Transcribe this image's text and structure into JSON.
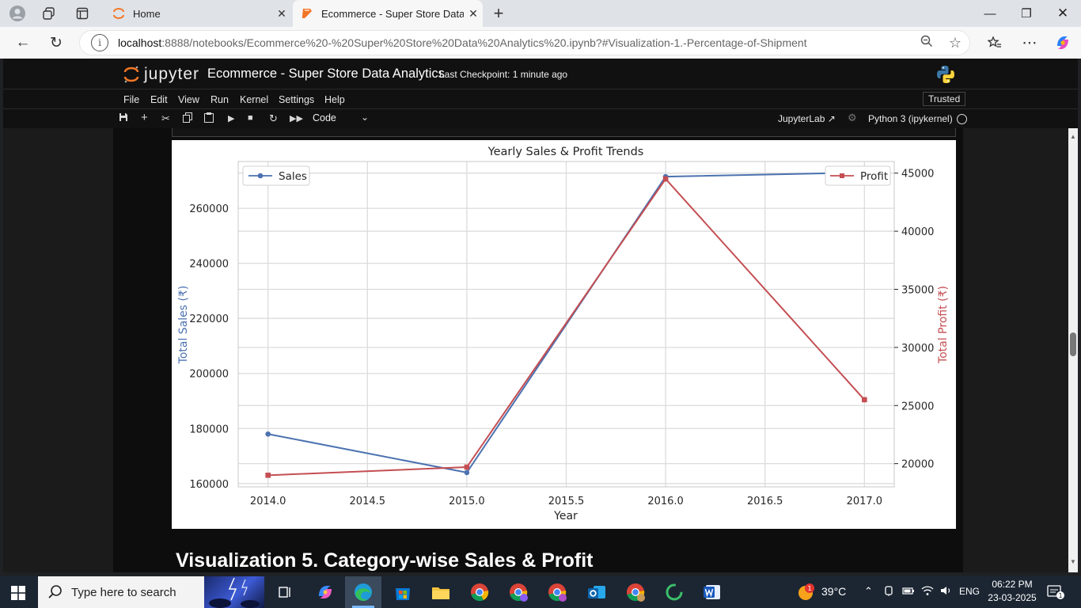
{
  "browser": {
    "tabs": [
      {
        "title": "Home",
        "active": false
      },
      {
        "title": "Ecommerce - Super Store Data Ar",
        "active": true
      }
    ],
    "new_tab": "+",
    "url_host": "localhost",
    "url_rest": ":8888/notebooks/Ecommerce%20-%20Super%20Store%20Data%20Analytics%20.ipynb?#Visualization-1.-Percentage-of-Shipment"
  },
  "jupyter": {
    "logo_word": "jupyter",
    "notebook_title": "Ecommerce - Super Store Data Analytics",
    "checkpoint": "Last Checkpoint: 1 minute ago",
    "menu": [
      "File",
      "Edit",
      "View",
      "Run",
      "Kernel",
      "Settings",
      "Help"
    ],
    "trusted": "Trusted",
    "cell_type": "Code",
    "jupyterlab_link": "JupyterLab",
    "kernel_name": "Python 3 (ipykernel)"
  },
  "chart_data": {
    "type": "line",
    "title": "Yearly Sales & Profit Trends",
    "xlabel": "Year",
    "ylabel_left": "Total Sales (₹)",
    "ylabel_right": "Total Profit (₹)",
    "x": [
      2014,
      2015,
      2016,
      2017
    ],
    "xticks": [
      "2014.0",
      "2014.5",
      "2015.0",
      "2015.5",
      "2016.0",
      "2016.5",
      "2017.0"
    ],
    "xlim": [
      2013.85,
      2017.15
    ],
    "left_yticks": [
      "160000",
      "180000",
      "200000",
      "220000",
      "240000",
      "260000"
    ],
    "right_yticks": [
      "20000",
      "25000",
      "30000",
      "35000",
      "40000",
      "45000"
    ],
    "left_ylim": [
      158800,
      277000
    ],
    "right_ylim": [
      18000,
      46000
    ],
    "grid": true,
    "series": [
      {
        "name": "Sales",
        "axis": "left",
        "color": "#4c72b0",
        "marker": "circle",
        "values": [
          178000,
          164000,
          271500,
          273000
        ],
        "legend_position": "top-left"
      },
      {
        "name": "Profit",
        "axis": "right",
        "color": "#c44e52",
        "marker": "square",
        "values": [
          19000,
          19700,
          44500,
          25500
        ],
        "legend_position": "top-right"
      }
    ]
  },
  "next_heading": "Visualization 5. Category-wise Sales & Profit",
  "taskbar": {
    "search_placeholder": "Type here to search",
    "temperature": "39°C",
    "language": "ENG",
    "time": "06:22 PM",
    "date": "23-03-2025",
    "weather_badge": "1",
    "notification_badge": "1"
  }
}
